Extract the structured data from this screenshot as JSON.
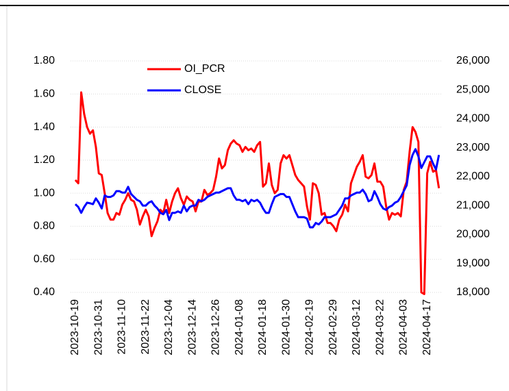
{
  "chart_data": {
    "type": "line",
    "categories": [
      "2023-10-19",
      null,
      null,
      null,
      null,
      null,
      null,
      null,
      "2023-10-31",
      null,
      null,
      null,
      null,
      null,
      null,
      null,
      "2023-11-10",
      null,
      null,
      null,
      null,
      null,
      null,
      null,
      "2023-11-22",
      null,
      null,
      null,
      null,
      null,
      null,
      null,
      "2023-12-04",
      null,
      null,
      null,
      null,
      null,
      null,
      null,
      "2023-12-14",
      null,
      null,
      null,
      null,
      null,
      null,
      null,
      "2023-12-26",
      null,
      null,
      null,
      null,
      null,
      null,
      null,
      "2024-01-08",
      null,
      null,
      null,
      null,
      null,
      null,
      null,
      "2024-01-18",
      null,
      null,
      null,
      null,
      null,
      null,
      null,
      "2024-01-30",
      null,
      null,
      null,
      null,
      null,
      null,
      null,
      "2024-02-19",
      null,
      null,
      null,
      null,
      null,
      null,
      null,
      "2024-02-29",
      null,
      null,
      null,
      null,
      null,
      null,
      null,
      "2024-03-12",
      null,
      null,
      null,
      null,
      null,
      null,
      null,
      "2024-03-22",
      null,
      null,
      null,
      null,
      null,
      null,
      null,
      "2024-04-03",
      null,
      null,
      null,
      null,
      null,
      null,
      null,
      "2024-04-17",
      null,
      null,
      null,
      null
    ],
    "series": [
      {
        "name": "OI_PCR",
        "color": "#ff0000",
        "axis": "y",
        "values": [
          1.08,
          1.06,
          1.61,
          1.48,
          1.4,
          1.36,
          1.38,
          1.28,
          1.12,
          1.11,
          1.0,
          0.88,
          0.84,
          0.84,
          0.88,
          0.87,
          0.93,
          0.96,
          1.0,
          0.96,
          0.95,
          0.9,
          0.81,
          0.86,
          0.9,
          0.86,
          0.74,
          0.79,
          0.83,
          0.9,
          0.88,
          0.96,
          0.88,
          0.95,
          1.0,
          1.03,
          0.97,
          0.93,
          0.98,
          0.96,
          0.95,
          0.89,
          0.95,
          0.95,
          1.02,
          0.99,
          1.0,
          1.02,
          1.1,
          1.21,
          1.15,
          1.17,
          1.26,
          1.3,
          1.32,
          1.3,
          1.29,
          1.25,
          1.28,
          1.26,
          1.27,
          1.25,
          1.29,
          1.31,
          1.04,
          1.06,
          1.18,
          1.05,
          1.0,
          1.02,
          1.18,
          1.23,
          1.21,
          1.23,
          1.17,
          1.11,
          1.08,
          1.06,
          1.04,
          0.92,
          0.84,
          1.06,
          1.05,
          1.0,
          0.87,
          0.88,
          0.82,
          0.82,
          0.8,
          0.77,
          0.84,
          0.87,
          0.93,
          0.89,
          1.06,
          1.11,
          1.16,
          1.19,
          1.23,
          1.1,
          1.09,
          1.11,
          1.18,
          1.07,
          1.07,
          1.04,
          0.92,
          0.84,
          0.88,
          0.87,
          0.88,
          0.86,
          1.02,
          1.07,
          1.25,
          1.4,
          1.37,
          1.31,
          0.4,
          0.39,
          1.12,
          1.19,
          1.13,
          1.14,
          1.03
        ]
      },
      {
        "name": "CLOSE",
        "color": "#0000ff",
        "axis": "y2",
        "values": [
          21050,
          20950,
          20750,
          20950,
          21100,
          21080,
          21050,
          21250,
          21100,
          20900,
          21350,
          21300,
          21300,
          21350,
          21500,
          21500,
          21450,
          21450,
          21650,
          21400,
          21300,
          21200,
          21150,
          21000,
          21000,
          21100,
          21150,
          21000,
          20900,
          20750,
          20700,
          20850,
          20500,
          20750,
          20750,
          20800,
          20750,
          21000,
          20800,
          20950,
          21000,
          21000,
          21200,
          21150,
          21200,
          21300,
          21350,
          21400,
          21450,
          21450,
          21500,
          21550,
          21600,
          21600,
          21350,
          21200,
          21200,
          21150,
          21200,
          21050,
          21200,
          21150,
          21200,
          21100,
          20900,
          20750,
          20750,
          21050,
          21300,
          21350,
          21400,
          21400,
          21300,
          21300,
          21050,
          20800,
          20600,
          20600,
          20600,
          20550,
          20250,
          20250,
          20400,
          20350,
          20450,
          20600,
          20600,
          20600,
          20650,
          20700,
          20850,
          21000,
          21250,
          21250,
          21350,
          21400,
          21450,
          21450,
          21550,
          21400,
          21150,
          21200,
          21500,
          21300,
          21050,
          20900,
          20850,
          20950,
          21000,
          21100,
          21150,
          21300,
          21500,
          21700,
          22400,
          22750,
          22950,
          22700,
          22300,
          22500,
          22700,
          22700,
          22450,
          22250,
          22750
        ]
      }
    ],
    "ylim": [
      0.4,
      1.8
    ],
    "yticks": [
      {
        "value": 0.4,
        "label": "0.40"
      },
      {
        "value": 0.6,
        "label": "0.60"
      },
      {
        "value": 0.8,
        "label": "0.80"
      },
      {
        "value": 1.0,
        "label": "1.00"
      },
      {
        "value": 1.2,
        "label": "1.20"
      },
      {
        "value": 1.4,
        "label": "1.40"
      },
      {
        "value": 1.6,
        "label": "1.60"
      },
      {
        "value": 1.8,
        "label": "1.80"
      }
    ],
    "y2lim": [
      18000,
      26000
    ],
    "y2ticks": [
      {
        "value": 18000,
        "label": "18,000"
      },
      {
        "value": 19000,
        "label": "19,000"
      },
      {
        "value": 20000,
        "label": "20,000"
      },
      {
        "value": 21000,
        "label": "21,000"
      },
      {
        "value": 22000,
        "label": "22,000"
      },
      {
        "value": 23000,
        "label": "23,000"
      },
      {
        "value": 24000,
        "label": "24,000"
      },
      {
        "value": 25000,
        "label": "25,000"
      },
      {
        "value": 26000,
        "label": "26,000"
      }
    ],
    "grid": true,
    "legend": "top-left"
  }
}
